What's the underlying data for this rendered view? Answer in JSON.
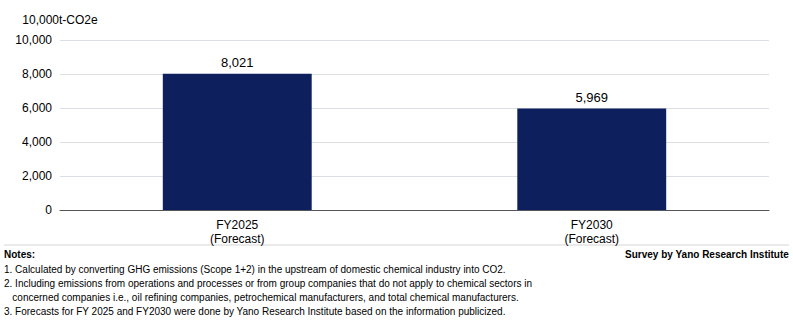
{
  "chart_data": {
    "type": "bar",
    "ylabel": "10,000t-CO2e",
    "categories": [
      "FY2025\n(Forecast)",
      "FY2030\n(Forecast)"
    ],
    "values": [
      8021,
      5969
    ],
    "value_labels": [
      "8,021",
      "5,969"
    ],
    "data_labels": true,
    "color": "#0d1f5c",
    "ylim": [
      0,
      10000
    ],
    "yticks": [
      0,
      {
        "value": 2000,
        "label": "2,000"
      },
      {
        "value": 4000,
        "label": "4,000"
      },
      {
        "value": 6000,
        "label": "6,000"
      },
      {
        "value": 8000,
        "label": "8,000"
      },
      {
        "value": 10000,
        "label": "10,000"
      }
    ],
    "grid": true,
    "notes_title": "Notes:",
    "source": "Survey by Yano Research Institute",
    "notes": [
      "1. Calculated by converting GHG emissions (Scope 1+2) in the upstream of domestic chemical industry into CO2.",
      "2. Including emissions from operations and processes or from group companies that do not apply to chemical sectors in",
      "   concerned companies i.e., oil refining companies, petrochemical manufacturers, and total chemical manufacturers.",
      "3. Forecasts for FY 2025 and FY2030 were done by Yano Research Institute based on the information publicized."
    ]
  }
}
